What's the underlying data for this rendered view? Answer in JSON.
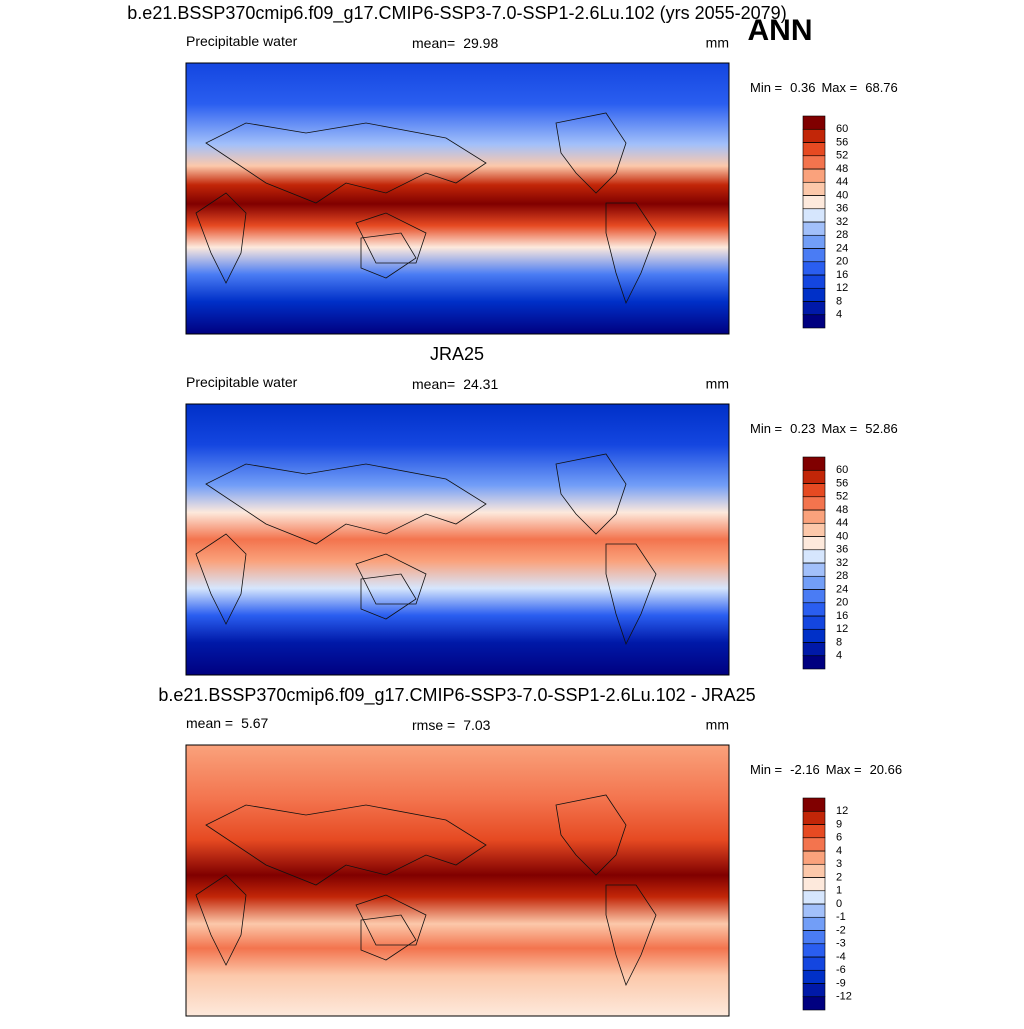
{
  "figure_label": "ANN",
  "panels": [
    {
      "title": "b.e21.BSSP370cmip6.f09_g17.CMIP6-SSP3-7.0-SSP1-2.6Lu.102 (yrs 2055-2079)",
      "left": {
        "label": "Precipitable water"
      },
      "center": {
        "label": "mean=",
        "value": 29.98
      },
      "units": "mm",
      "min_label": "Min =",
      "min": 0.36,
      "max_label": "Max =",
      "max": 68.76,
      "levels": [
        4,
        8,
        12,
        16,
        20,
        24,
        28,
        32,
        36,
        40,
        44,
        48,
        52,
        56,
        60
      ],
      "colors": [
        "#000080",
        "#0019a8",
        "#0030c8",
        "#1446e0",
        "#2a5ef0",
        "#4a7cf4",
        "#729ef7",
        "#a2c0fa",
        "#d6e6fd",
        "#fde9dc",
        "#fcc8aa",
        "#faa27c",
        "#f3744e",
        "#e64a22",
        "#c22608",
        "#800000"
      ],
      "map_gradient": "g-abs1"
    },
    {
      "title": "JRA25",
      "left": {
        "label": "Precipitable water"
      },
      "center": {
        "label": "mean=",
        "value": 24.31
      },
      "units": "mm",
      "min_label": "Min =",
      "min": 0.23,
      "max_label": "Max =",
      "max": 52.86,
      "levels": [
        4,
        8,
        12,
        16,
        20,
        24,
        28,
        32,
        36,
        40,
        44,
        48,
        52,
        56,
        60
      ],
      "colors": [
        "#000080",
        "#0019a8",
        "#0030c8",
        "#1446e0",
        "#2a5ef0",
        "#4a7cf4",
        "#729ef7",
        "#a2c0fa",
        "#d6e6fd",
        "#fde9dc",
        "#fcc8aa",
        "#faa27c",
        "#f3744e",
        "#e64a22",
        "#c22608",
        "#800000"
      ],
      "map_gradient": "g-abs2"
    },
    {
      "title": "b.e21.BSSP370cmip6.f09_g17.CMIP6-SSP3-7.0-SSP1-2.6Lu.102 - JRA25",
      "left": {
        "label": "mean =",
        "value": 5.67
      },
      "center": {
        "label": "rmse =",
        "value": 7.03
      },
      "units": "mm",
      "min_label": "Min =",
      "min": -2.16,
      "max_label": "Max =",
      "max": 20.66,
      "levels": [
        -12,
        -9,
        -6,
        -4,
        -3,
        -2,
        -1,
        0,
        1,
        2,
        3,
        4,
        6,
        9,
        12
      ],
      "colors": [
        "#000080",
        "#0019a8",
        "#0030c8",
        "#1446e0",
        "#2a5ef0",
        "#4a7cf4",
        "#729ef7",
        "#a2c0fa",
        "#d6e6fd",
        "#fde9dc",
        "#fcc8aa",
        "#faa27c",
        "#f3744e",
        "#e64a22",
        "#c22608",
        "#800000"
      ],
      "map_gradient": "g-diff"
    }
  ]
}
